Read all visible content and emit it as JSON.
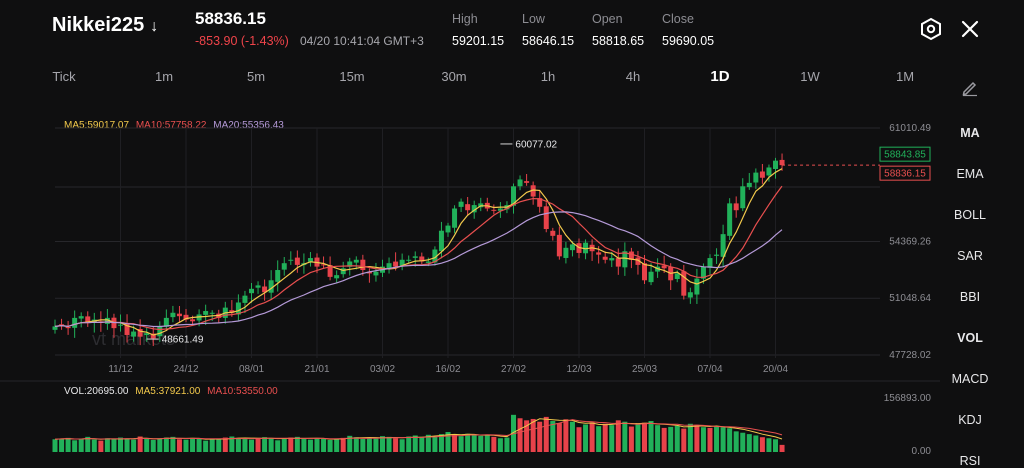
{
  "header": {
    "symbol": "Nikkei225",
    "direction_arrow": "↓",
    "price": "58836.15",
    "change": "-853.90 (-1.43%)",
    "timestamp": "04/20 10:41:04 GMT+3",
    "stats": [
      {
        "label": "High",
        "value": "59201.15"
      },
      {
        "label": "Low",
        "value": "58646.15"
      },
      {
        "label": "Open",
        "value": "58818.65"
      },
      {
        "label": "Close",
        "value": "59690.05"
      }
    ]
  },
  "icons": {
    "settings": "hexagon-gear-icon",
    "close": "close-icon",
    "draw": "pencil-icon"
  },
  "timeframes": [
    "Tick",
    "1m",
    "5m",
    "15m",
    "30m",
    "1h",
    "4h",
    "1D",
    "1W",
    "1M"
  ],
  "active_timeframe": "1D",
  "side_menu": [
    "MA",
    "EMA",
    "BOLL",
    "SAR",
    "BBI",
    "VOL",
    "MACD",
    "KDJ",
    "RSI"
  ],
  "colors": {
    "up": "#21b15a",
    "down": "#e8424a",
    "ma5": "#f2c94c",
    "ma10": "#e84f4f",
    "ma20": "#b59ad8"
  },
  "chart_data": [
    {
      "type": "candlestick",
      "legend": {
        "ma5": "MA5:59017.07",
        "ma10": "MA10:57758.22",
        "ma20": "MA20:55356.43"
      },
      "y_ticks": [
        "61010.49",
        "54369.26",
        "51048.64",
        "47728.02"
      ],
      "y_tick_values": [
        61010.49,
        54369.26,
        51048.64,
        47728.02
      ],
      "ylim": [
        47728.02,
        61010.49
      ],
      "x_ticks": [
        "11/12",
        "24/12",
        "08/01",
        "21/01",
        "03/02",
        "16/02",
        "27/02",
        "12/03",
        "25/03",
        "07/04",
        "20/04"
      ],
      "x_tick_index": [
        10,
        20,
        30,
        40,
        50,
        60,
        70,
        80,
        90,
        100,
        110
      ],
      "price_tags": {
        "current_green": "58843.85",
        "current_red": "58836.15",
        "current_value": 58836.15
      },
      "annotations": [
        {
          "text": "60077.02",
          "index": 68,
          "value": 60077.02
        },
        {
          "text": "48661.49",
          "index": 14,
          "value": 48661.49
        }
      ],
      "closes": [
        49400,
        49500,
        49300,
        49900,
        50000,
        49600,
        49800,
        49600,
        49900,
        49300,
        49500,
        48900,
        49100,
        48800,
        49000,
        48700,
        49400,
        49900,
        50200,
        50000,
        49800,
        49700,
        50100,
        50300,
        50200,
        49900,
        50500,
        50200,
        50800,
        51200,
        51600,
        51800,
        51400,
        52100,
        52700,
        53100,
        53300,
        53000,
        53100,
        53400,
        52900,
        53000,
        52300,
        52400,
        52800,
        53200,
        53300,
        52700,
        52500,
        52600,
        52900,
        53100,
        52900,
        53300,
        53300,
        53500,
        53200,
        53200,
        53900,
        55000,
        55300,
        56300,
        56700,
        56200,
        56500,
        56600,
        56300,
        56200,
        56300,
        56500,
        57600,
        58000,
        57800,
        57000,
        56400,
        55100,
        54700,
        53500,
        54000,
        54200,
        53700,
        54300,
        53800,
        53600,
        53300,
        53400,
        52900,
        53800,
        53300,
        53000,
        52100,
        52600,
        52900,
        52800,
        52100,
        52500,
        51200,
        51400,
        52200,
        52900,
        53400,
        53600,
        54800,
        56600,
        56200,
        57600,
        57800,
        58400,
        58100,
        58700,
        59100,
        58836
      ]
    },
    {
      "type": "bar",
      "title": "VOL",
      "legend": {
        "vol": "VOL:20695.00",
        "ma5": "MA5:37921.00",
        "ma10": "MA10:53550.00"
      },
      "y_ticks": [
        "156893.00",
        "0.00"
      ],
      "ylim": [
        0,
        156893
      ],
      "values": [
        37000,
        39000,
        41000,
        34000,
        38000,
        44000,
        36000,
        33000,
        40000,
        38000,
        42000,
        39000,
        36000,
        45000,
        38000,
        35000,
        39000,
        42000,
        44000,
        37000,
        36000,
        41000,
        39000,
        33000,
        38000,
        37000,
        42000,
        45000,
        40000,
        39000,
        36000,
        41000,
        43000,
        40000,
        34000,
        38000,
        42000,
        44000,
        39000,
        36000,
        40000,
        38000,
        35000,
        39000,
        41000,
        47000,
        43000,
        38000,
        42000,
        39000,
        46000,
        44000,
        40000,
        37000,
        45000,
        48000,
        44000,
        50000,
        46000,
        52000,
        58000,
        50000,
        46000,
        53000,
        49000,
        47000,
        51000,
        44000,
        40000,
        42000,
        108000,
        98000,
        92000,
        96000,
        88000,
        102000,
        90000,
        84000,
        95000,
        88000,
        72000,
        80000,
        86000,
        75000,
        82000,
        78000,
        92000,
        88000,
        74000,
        80000,
        85000,
        90000,
        78000,
        70000,
        73000,
        76000,
        68000,
        82000,
        79000,
        72000,
        70000,
        74000,
        72000,
        69000,
        60000,
        56000,
        52000,
        48000,
        43000,
        40000,
        37000,
        20695
      ],
      "down_indices": [
        7,
        13,
        19,
        26,
        31,
        36,
        44,
        52,
        61,
        67,
        71,
        72,
        73,
        74,
        75,
        77,
        78,
        80,
        82,
        84,
        86,
        88,
        90,
        93,
        96,
        98,
        100,
        108,
        111
      ]
    }
  ]
}
